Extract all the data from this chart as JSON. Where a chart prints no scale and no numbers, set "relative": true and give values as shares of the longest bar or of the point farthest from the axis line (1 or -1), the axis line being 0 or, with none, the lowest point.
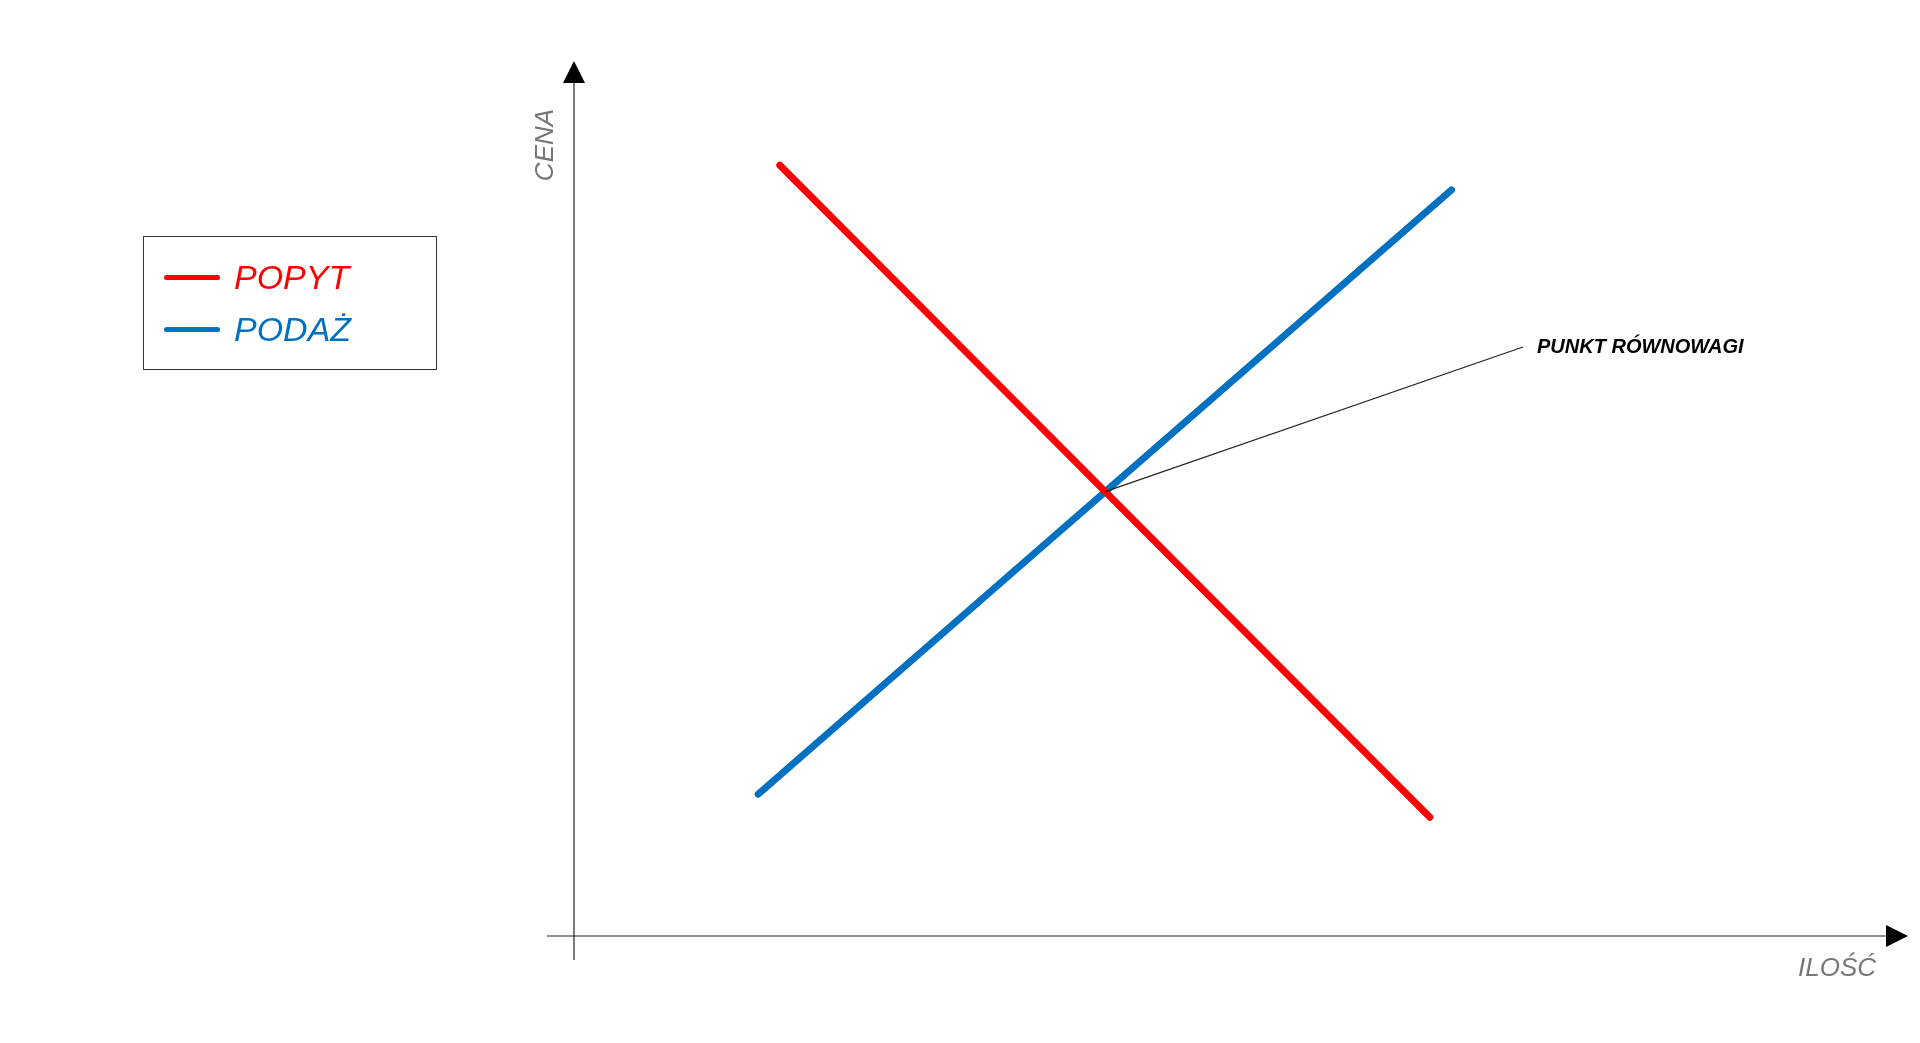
{
  "chart_data": {
    "type": "line",
    "relative": true,
    "xlabel": "ILOŚĆ",
    "ylabel": "CENA",
    "legend": "left",
    "marker": "none",
    "categories": [
      null,
      null,
      null,
      null,
      null,
      null,
      null,
      null,
      null,
      null,
      null,
      null,
      null,
      null,
      null,
      null,
      null,
      null,
      null,
      null,
      null,
      null,
      null,
      null,
      null,
      null,
      null,
      null,
      null,
      null,
      null,
      null,
      null,
      null,
      null,
      null,
      null,
      null,
      null,
      null,
      null,
      null,
      null,
      null,
      null,
      null,
      null,
      null,
      null,
      null,
      null,
      null,
      null,
      null,
      null,
      null,
      null,
      null,
      null,
      null
    ],
    "series": [
      {
        "name": "POPYT",
        "color": "#ff0000",
        "values": [
          null,
          null,
          null,
          null,
          null,
          null,
          null,
          null,
          null,
          1,
          null,
          null,
          null,
          null,
          null,
          null,
          null,
          null,
          null,
          null,
          null,
          null,
          null,
          null,
          null,
          null,
          null,
          null,
          null,
          null,
          null,
          null,
          null,
          null,
          null,
          null,
          null,
          null,
          null,
          0.154,
          null,
          null,
          null,
          null,
          null,
          null,
          null,
          null,
          null,
          null,
          null,
          null,
          null,
          null,
          null,
          null,
          null,
          null,
          null,
          null
        ]
      },
      {
        "name": "PODAŻ",
        "color": "#0070c0",
        "values": [
          null,
          null,
          null,
          null,
          null,
          null,
          null,
          null,
          0.184,
          null,
          null,
          null,
          null,
          null,
          null,
          null,
          null,
          null,
          null,
          null,
          null,
          null,
          null,
          null,
          null,
          null,
          null,
          null,
          null,
          null,
          null,
          null,
          null,
          null,
          null,
          null,
          null,
          null,
          null,
          null,
          0.968,
          null,
          null,
          null,
          null,
          null,
          null,
          null,
          null,
          null,
          null,
          null,
          null,
          null,
          null,
          null,
          null,
          null,
          null,
          null
        ]
      }
    ],
    "annotations": [
      "PUNKT RÓWNOWAGI"
    ]
  }
}
